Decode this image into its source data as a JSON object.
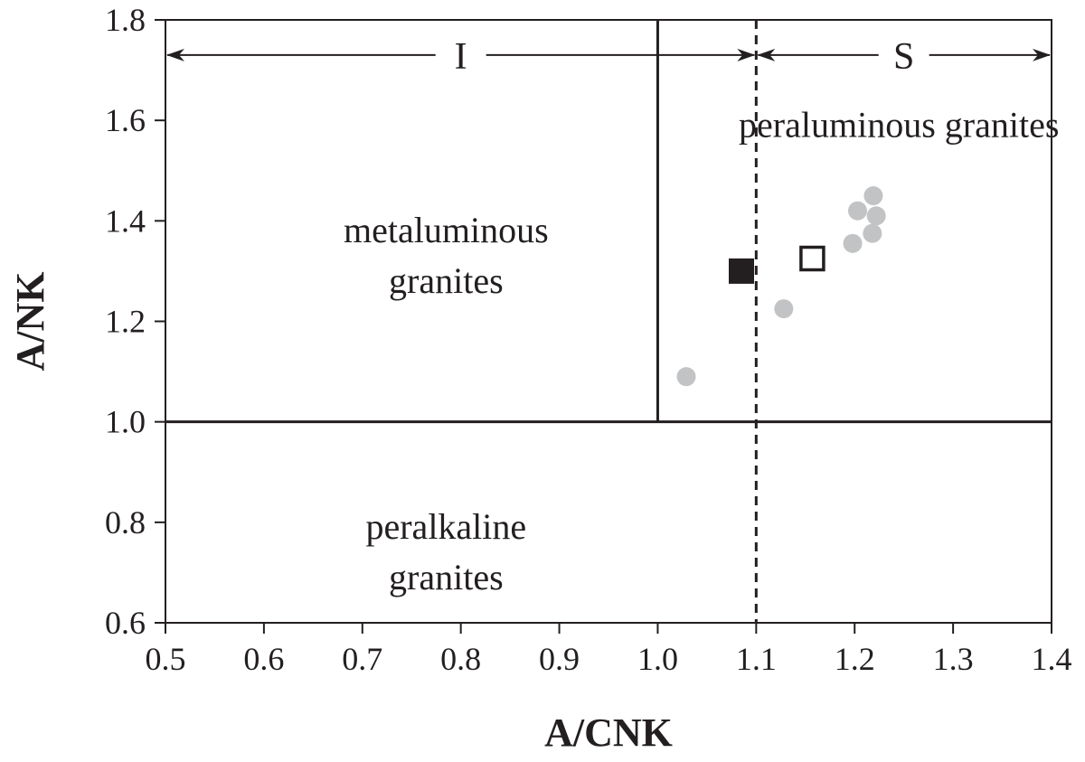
{
  "chart_data": {
    "type": "scatter",
    "title": "",
    "xlabel": "A/CNK",
    "ylabel": "A/NK",
    "xlim": [
      0.5,
      1.4
    ],
    "ylim": [
      0.6,
      1.8
    ],
    "xticks": [
      0.5,
      0.6,
      0.7,
      0.8,
      0.9,
      1.0,
      1.1,
      1.2,
      1.3,
      1.4
    ],
    "yticks": [
      0.6,
      0.8,
      1.0,
      1.2,
      1.4,
      1.6,
      1.8
    ],
    "xtick_labels": [
      "0.5",
      "0.6",
      "0.7",
      "0.8",
      "0.9",
      "1.0",
      "1.1",
      "1.2",
      "1.3",
      "1.4"
    ],
    "ytick_labels": [
      "0.6",
      "0.8",
      "1.0",
      "1.2",
      "1.4",
      "1.6",
      "1.8"
    ],
    "grid": false,
    "boundary_lines": [
      {
        "orientation": "horizontal",
        "value": 1.0,
        "style": "solid"
      },
      {
        "orientation": "vertical",
        "value": 1.0,
        "style": "solid",
        "from": 1.0,
        "to": 1.8
      },
      {
        "orientation": "vertical",
        "value": 1.1,
        "style": "dashed",
        "from": 0.6,
        "to": 1.8
      }
    ],
    "type_arrows": [
      {
        "label": "I",
        "x_from": 0.5,
        "x_to": 1.1,
        "y": 1.73
      },
      {
        "label": "S",
        "x_from": 1.1,
        "x_to": 1.4,
        "y": 1.73
      }
    ],
    "region_labels": [
      {
        "lines": [
          "metaluminous",
          "granites"
        ],
        "x": 0.785,
        "y": 1.33
      },
      {
        "lines": [
          "peralkaline",
          "granites"
        ],
        "x": 0.785,
        "y": 0.74
      },
      {
        "lines": [
          "peraluminous granites"
        ],
        "x": 1.245,
        "y": 1.59
      }
    ],
    "series": [
      {
        "marker": "filled-square",
        "color": "#231f20",
        "points": [
          {
            "x": 1.085,
            "y": 1.3
          }
        ]
      },
      {
        "marker": "open-square",
        "color": "#231f20",
        "points": [
          {
            "x": 1.157,
            "y": 1.325
          }
        ]
      },
      {
        "marker": "circle",
        "color": "#c2c3c5",
        "points": [
          {
            "x": 1.029,
            "y": 1.09
          },
          {
            "x": 1.128,
            "y": 1.225
          },
          {
            "x": 1.198,
            "y": 1.355
          },
          {
            "x": 1.203,
            "y": 1.42
          },
          {
            "x": 1.219,
            "y": 1.45
          },
          {
            "x": 1.222,
            "y": 1.41
          },
          {
            "x": 1.218,
            "y": 1.375
          }
        ]
      }
    ],
    "line_color": "#231f20"
  }
}
